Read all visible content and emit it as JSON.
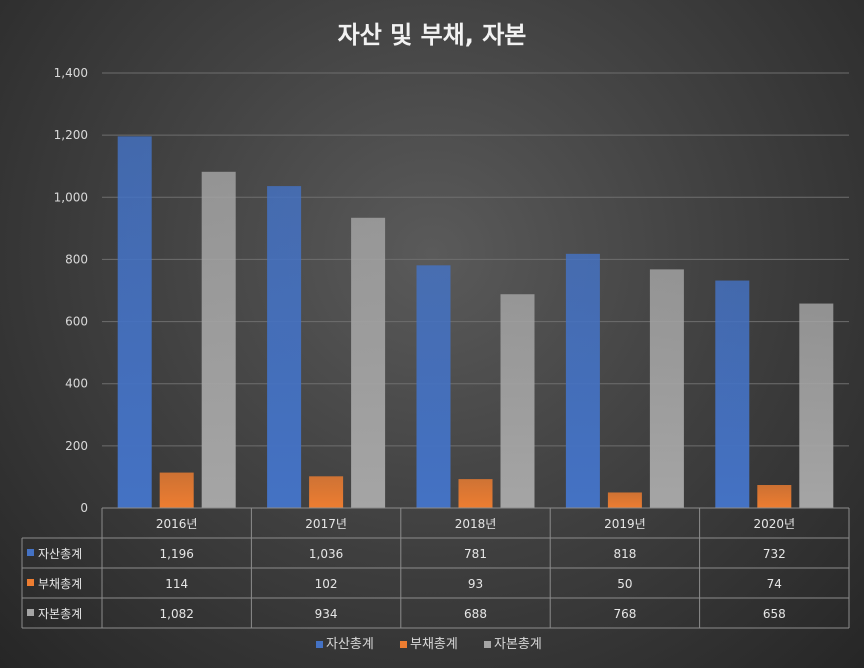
{
  "chart_data": {
    "type": "bar",
    "title": "자산 및 부채, 자본",
    "categories": [
      "2016년",
      "2017년",
      "2018년",
      "2019년",
      "2020년"
    ],
    "series": [
      {
        "name": "자산총계",
        "values": [
          1196,
          1036,
          781,
          818,
          732
        ],
        "color": "#4472c4",
        "table_values": [
          "1,196",
          "1,036",
          "781",
          "818",
          "732"
        ]
      },
      {
        "name": "부채총계",
        "values": [
          114,
          102,
          93,
          50,
          74
        ],
        "color": "#ed7d31",
        "table_values": [
          "114",
          "102",
          "93",
          "50",
          "74"
        ]
      },
      {
        "name": "자본총계",
        "values": [
          1082,
          934,
          688,
          768,
          658
        ],
        "color": "#a5a5a5",
        "table_values": [
          "1,082",
          "934",
          "688",
          "768",
          "658"
        ]
      }
    ],
    "ylim": [
      0,
      1400
    ],
    "yticks": [
      0,
      200,
      400,
      600,
      800,
      1000,
      1200,
      1400
    ],
    "ytick_labels": [
      "0",
      "200",
      "400",
      "600",
      "800",
      "1,000",
      "1,200",
      "1,400"
    ],
    "grid": true,
    "legend": "bottom-center",
    "xlabel": "",
    "ylabel": ""
  }
}
